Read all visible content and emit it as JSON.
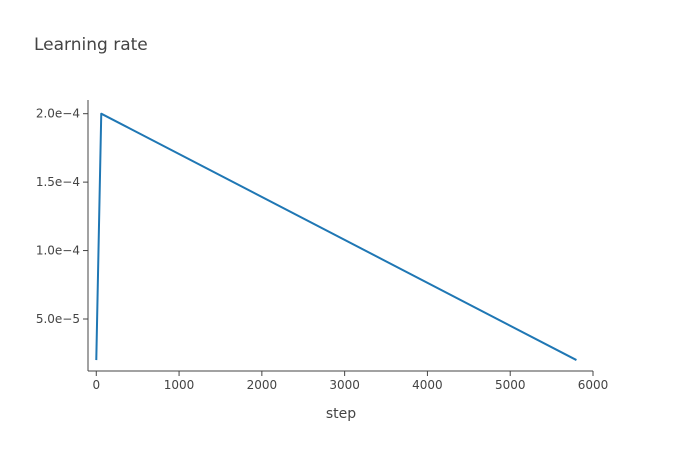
{
  "chart_data": {
    "type": "line",
    "title": "Learning rate",
    "xlabel": "step",
    "ylabel": "",
    "xlim": [
      -100,
      6000
    ],
    "ylim": [
      1.2e-05,
      0.00021
    ],
    "x_ticks": [
      {
        "value": 0,
        "label": "0"
      },
      {
        "value": 1000,
        "label": "1000"
      },
      {
        "value": 2000,
        "label": "2000"
      },
      {
        "value": 3000,
        "label": "3000"
      },
      {
        "value": 4000,
        "label": "4000"
      },
      {
        "value": 5000,
        "label": "5000"
      },
      {
        "value": 6000,
        "label": "6000"
      }
    ],
    "y_ticks": [
      {
        "value": 5e-05,
        "label": "5.0e−5"
      },
      {
        "value": 0.0001,
        "label": "1.0e−4"
      },
      {
        "value": 0.00015,
        "label": "1.5e−4"
      },
      {
        "value": 0.0002,
        "label": "2.0e−4"
      }
    ],
    "grid": false,
    "series": [
      {
        "color": "#1f77b4",
        "x": [
          0,
          60,
          5800
        ],
        "y": [
          2e-05,
          0.0002,
          2e-05
        ]
      }
    ]
  }
}
